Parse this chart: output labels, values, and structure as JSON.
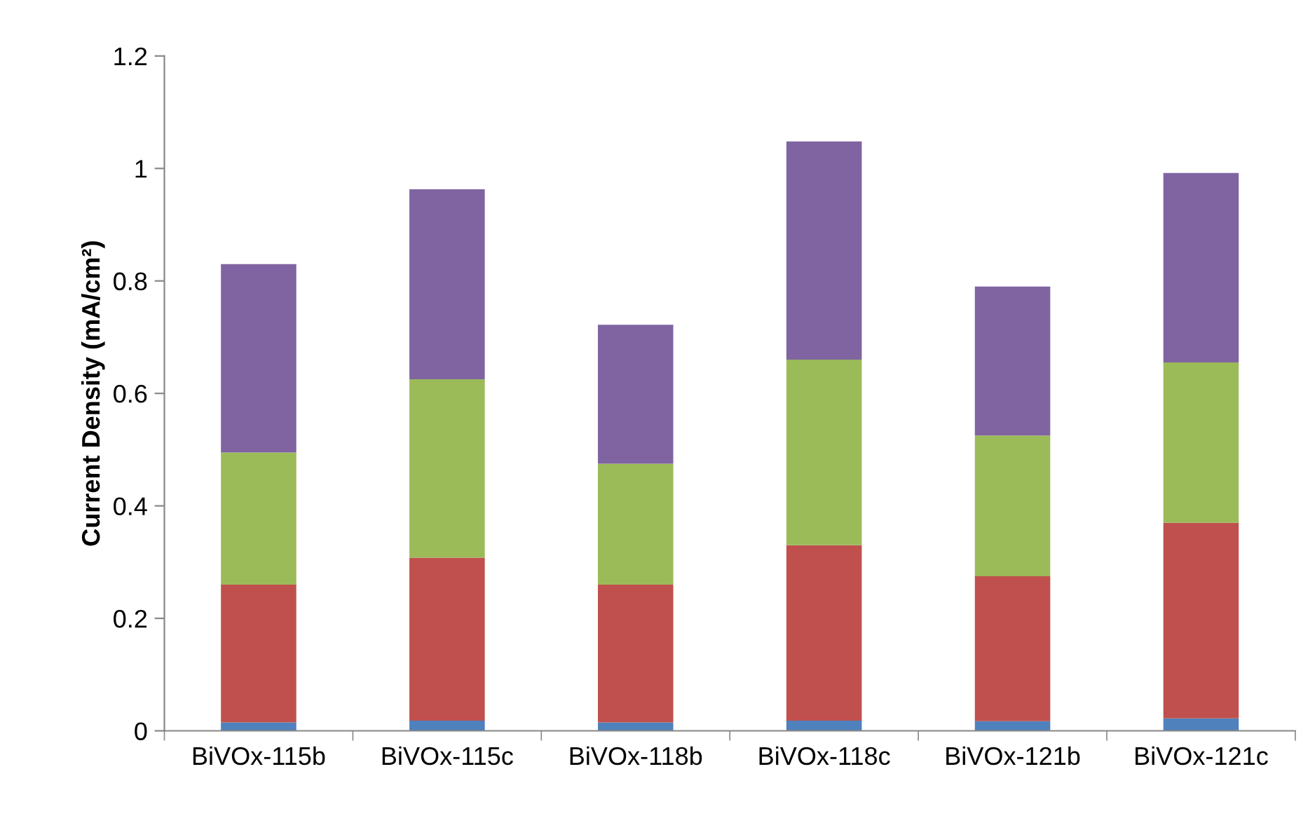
{
  "chart_data": {
    "type": "bar",
    "stacked": true,
    "ylabel": "Current Density (mA/cm²)",
    "categories": [
      "BiVOx-115b",
      "BiVOx-115c",
      "BiVOx-118b",
      "BiVOx-118c",
      "BiVOx-121b",
      "BiVOx-121c"
    ],
    "series": [
      {
        "color": "#4f81bd",
        "values": [
          0.015,
          0.018,
          0.015,
          0.018,
          0.017,
          0.022
        ]
      },
      {
        "color": "#c0504d",
        "values": [
          0.245,
          0.29,
          0.245,
          0.312,
          0.258,
          0.348
        ]
      },
      {
        "color": "#9bbb59",
        "values": [
          0.235,
          0.317,
          0.215,
          0.33,
          0.25,
          0.285
        ]
      },
      {
        "color": "#8064a2",
        "values": [
          0.335,
          0.338,
          0.247,
          0.388,
          0.265,
          0.337
        ]
      }
    ],
    "ylim": [
      0,
      1.2
    ],
    "yticks": [
      0,
      0.2,
      0.4,
      0.6,
      0.8,
      1,
      1.2
    ],
    "grid": false,
    "legend": false
  }
}
